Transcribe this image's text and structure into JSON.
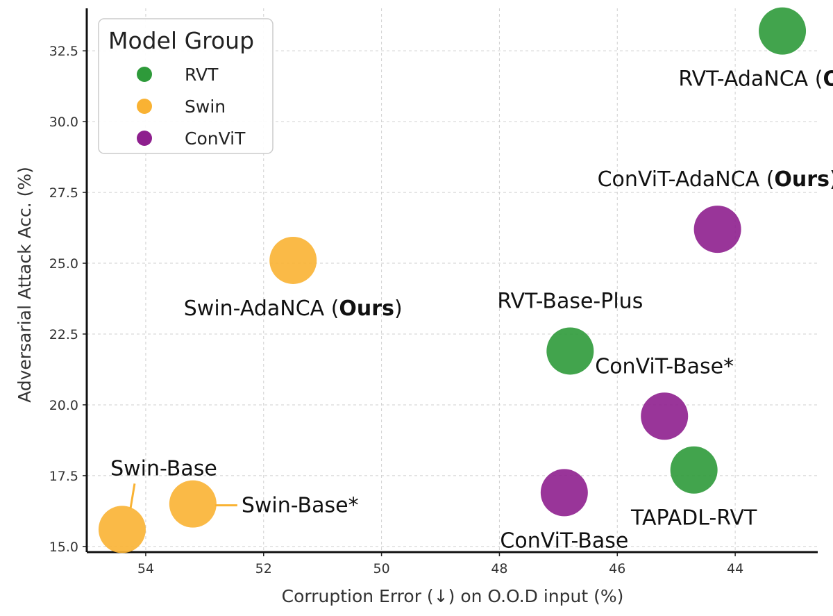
{
  "chart_data": {
    "type": "scatter",
    "title": "",
    "xlabel": "Corruption Error (↓) on O.O.D input (%)",
    "ylabel": "Adversarial Attack Acc. (%)",
    "xlim": [
      55.0,
      42.6
    ],
    "ylim": [
      14.8,
      34.0
    ],
    "x_reversed": true,
    "x_ticks": [
      "54",
      "52",
      "50",
      "48",
      "46",
      "44"
    ],
    "y_ticks": [
      "15.0",
      "17.5",
      "20.0",
      "22.5",
      "25.0",
      "27.5",
      "30.0",
      "32.5"
    ],
    "grid": true,
    "legend": {
      "title": "Model Group",
      "placement": "top-left",
      "entries": [
        {
          "name": "RVT",
          "color": "#2e9a3a"
        },
        {
          "name": "Swin",
          "color": "#f9b233"
        },
        {
          "name": "ConViT",
          "color": "#8e1f8e"
        }
      ]
    },
    "points": [
      {
        "label": "RVT-AdaNCA",
        "label_suffix": "Ours",
        "group": "RVT",
        "x": 43.2,
        "y": 33.2,
        "label_pos": "below"
      },
      {
        "label": "ConViT-AdaNCA",
        "label_suffix": "Ours",
        "group": "ConViT",
        "x": 44.3,
        "y": 26.2,
        "label_pos": "above"
      },
      {
        "label": "Swin-AdaNCA",
        "label_suffix": "Ours",
        "group": "Swin",
        "x": 51.5,
        "y": 25.1,
        "label_pos": "below"
      },
      {
        "label": "RVT-Base-Plus",
        "label_suffix": "",
        "group": "RVT",
        "x": 46.8,
        "y": 21.9,
        "label_pos": "above"
      },
      {
        "label": "ConViT-Base*",
        "label_suffix": "",
        "group": "ConViT",
        "x": 45.2,
        "y": 19.6,
        "label_pos": "above"
      },
      {
        "label": "TAPADL-RVT",
        "label_suffix": "",
        "group": "RVT",
        "x": 44.7,
        "y": 17.7,
        "label_pos": "below"
      },
      {
        "label": "ConViT-Base",
        "label_suffix": "",
        "group": "ConViT",
        "x": 46.9,
        "y": 16.9,
        "label_pos": "below"
      },
      {
        "label": "Swin-Base*",
        "label_suffix": "",
        "group": "Swin",
        "x": 53.2,
        "y": 16.5,
        "label_pos": "right-callout"
      },
      {
        "label": "Swin-Base",
        "label_suffix": "",
        "group": "Swin",
        "x": 54.4,
        "y": 15.6,
        "label_pos": "above-callout"
      }
    ]
  }
}
